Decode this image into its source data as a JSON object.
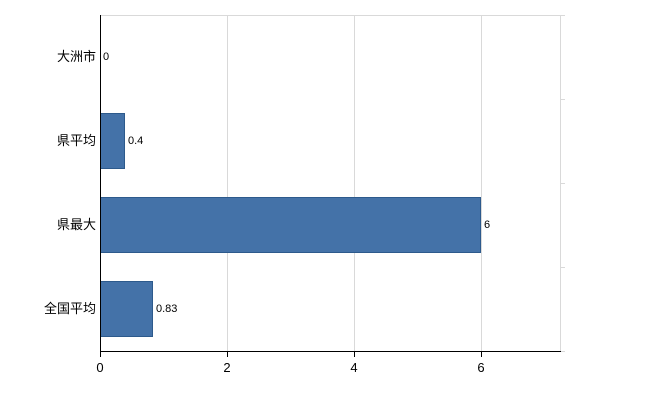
{
  "chart_data": {
    "type": "bar",
    "orientation": "horizontal",
    "title": "",
    "xlabel": "",
    "ylabel": "",
    "categories": [
      "大洲市",
      "県平均",
      "県最大",
      "全国平均"
    ],
    "values": [
      0,
      0.4,
      6,
      0.83
    ],
    "data_labels": [
      "0",
      "0.4",
      "6",
      "0.83"
    ],
    "xlim": [
      0,
      7.25
    ],
    "xticks": [
      0,
      2,
      4,
      6
    ],
    "xtick_labels": [
      "0",
      "2",
      "4",
      "6"
    ],
    "grid": true,
    "legend": "none",
    "bar_color": "#4472a8",
    "bar_border_color": "#2d5a8c",
    "grid_color": "#d9d9d9",
    "border_color": "#d9d9d9",
    "axis_color": "#000000",
    "background_color": "#ffffff"
  }
}
